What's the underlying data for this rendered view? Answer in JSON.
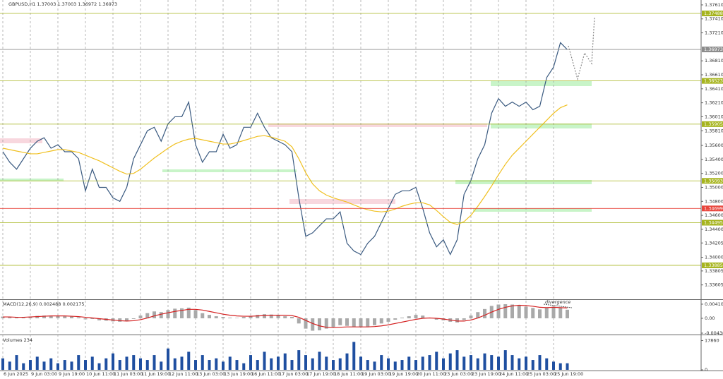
{
  "chart_data": [
    {
      "type": "line",
      "title": "GBPUSD,H1 1.37003 1.37003 1.36972 1.36973",
      "categories": [
        "6 Jun 2025",
        null,
        null,
        null,
        "9 Jun 03:00",
        null,
        null,
        null,
        "9 Jun 19:00",
        null,
        null,
        null,
        "10 Jun 11:00",
        null,
        null,
        null,
        "11 Jun 03:00",
        null,
        null,
        null,
        "11 Jun 19:00",
        null,
        null,
        null,
        "12 Jun 11:00",
        null,
        null,
        null,
        "13 Jun 03:00",
        null,
        null,
        null,
        "13 Jun 19:00",
        null,
        null,
        null,
        "16 Jun 11:00",
        null,
        null,
        null,
        "17 Jun 03:00",
        null,
        null,
        null,
        "17 Jun 19:00",
        null,
        null,
        null,
        "18 Jun 11:00",
        null,
        null,
        null,
        "19 Jun 03:00",
        null,
        null,
        null,
        "19 Jun 19:00",
        null,
        null,
        null,
        "20 Jun 11:00",
        null,
        null,
        null,
        "23 Jun 03:00",
        null,
        null,
        null,
        "23 Jun 19:00",
        null,
        null,
        null,
        "24 Jun 11:00",
        null,
        null,
        null,
        "25 Jun 03:00",
        null,
        null,
        null,
        "25 Jun 19:00",
        null,
        null
      ],
      "series": [
        {
          "color": "#3a5a80",
          "values": [
            1.3551,
            1.3536,
            1.3526,
            1.3541,
            1.3556,
            1.3566,
            1.3571,
            1.3556,
            1.3561,
            1.3551,
            1.3551,
            1.3541,
            1.3495,
            1.3526,
            1.35,
            1.35,
            1.3485,
            1.348,
            1.35,
            1.3541,
            1.3561,
            1.3581,
            1.3586,
            1.3566,
            1.3591,
            1.3601,
            1.3601,
            1.3622,
            1.3561,
            1.3536,
            1.3551,
            1.3551,
            1.3576,
            1.3556,
            1.3561,
            1.3586,
            1.3586,
            1.3606,
            1.3586,
            1.3571,
            1.3566,
            1.3561,
            1.3551,
            1.3485,
            1.343,
            1.3435,
            1.3445,
            1.3455,
            1.3455,
            1.3465,
            1.342,
            1.3409,
            1.3404,
            1.342,
            1.343,
            1.345,
            1.347,
            1.349,
            1.3495,
            1.3495,
            1.35,
            1.347,
            1.3435,
            1.3415,
            1.3425,
            1.3404,
            1.3425,
            1.349,
            1.351,
            1.3541,
            1.3561,
            1.3606,
            1.3627,
            1.3616,
            1.3622,
            1.3616,
            1.3622,
            1.3611,
            1.3616,
            1.3657,
            1.3672,
            1.3707,
            1.3697
          ]
        },
        {
          "color": "#f0c020",
          "values": [
            1.3556,
            1.3554,
            1.3552,
            1.355,
            1.3548,
            1.3548,
            1.355,
            1.3552,
            1.3554,
            1.3554,
            1.3552,
            1.355,
            1.3546,
            1.3542,
            1.3538,
            1.3533,
            1.3528,
            1.3523,
            1.3519,
            1.352,
            1.3526,
            1.3534,
            1.3542,
            1.3549,
            1.3556,
            1.3562,
            1.3566,
            1.3569,
            1.357,
            1.3568,
            1.3566,
            1.3564,
            1.3562,
            1.3562,
            1.3564,
            1.3567,
            1.357,
            1.3573,
            1.3574,
            1.3572,
            1.3569,
            1.3566,
            1.3558,
            1.3541,
            1.3521,
            1.3505,
            1.3495,
            1.3489,
            1.3485,
            1.3482,
            1.3479,
            1.3475,
            1.3471,
            1.3468,
            1.3466,
            1.3465,
            1.3466,
            1.3469,
            1.3473,
            1.3476,
            1.3478,
            1.3478,
            1.3475,
            1.3467,
            1.3458,
            1.345,
            1.3447,
            1.3451,
            1.346,
            1.3473,
            1.3487,
            1.3502,
            1.3518,
            1.3533,
            1.3546,
            1.3556,
            1.3566,
            1.3576,
            1.3586,
            1.3596,
            1.3606,
            1.3614,
            1.3618
          ]
        }
      ],
      "ylim": [
        1.334,
        1.3768
      ],
      "yticks": [
        {
          "value": 1.3761,
          "label": "1.37610"
        },
        {
          "value": 1.3741,
          "label": "1.37410"
        },
        {
          "value": 1.3721,
          "label": "1.37210"
        },
        {
          "value": 1.3681,
          "label": "1.36810"
        },
        {
          "value": 1.3661,
          "label": "1.36610"
        },
        {
          "value": 1.3641,
          "label": "1.36410"
        },
        {
          "value": 1.3621,
          "label": "1.36210"
        },
        {
          "value": 1.3601,
          "label": "1.36010"
        },
        {
          "value": 1.3581,
          "label": "1.35810"
        },
        {
          "value": 1.356,
          "label": "1.35600"
        },
        {
          "value": 1.354,
          "label": "1.35400"
        },
        {
          "value": 1.352,
          "label": "1.35200"
        },
        {
          "value": 1.35,
          "label": "1.35000"
        },
        {
          "value": 1.348,
          "label": "1.34800"
        },
        {
          "value": 1.346,
          "label": "1.34600"
        },
        {
          "value": 1.344,
          "label": "1.34400"
        },
        {
          "value": 1.34205,
          "label": "1.34205"
        },
        {
          "value": 1.34,
          "label": "1.34000"
        },
        {
          "value": 1.33805,
          "label": "1.33805"
        },
        {
          "value": 1.33605,
          "label": "1.33605"
        }
      ],
      "levels": [
        {
          "value": 1.37488,
          "color": "#a6b41e"
        },
        {
          "value": 1.36973,
          "color": "#8c8c8c"
        },
        {
          "value": 1.36523,
          "color": "#a6b41e"
        },
        {
          "value": 1.35905,
          "color": "#a6b41e"
        },
        {
          "value": 1.35093,
          "color": "#a6b41e"
        },
        {
          "value": 1.34699,
          "color": "#e8453c"
        },
        {
          "value": 1.34495,
          "color": "#a6b41e"
        },
        {
          "value": 1.33885,
          "color": "#a6b41e"
        }
      ]
    },
    {
      "type": "combo",
      "title": "MACD(12,26,9) 0.002488 0.002175",
      "annotation": "divergence",
      "series": [
        {
          "type": "bar",
          "color": "#a9a9a9",
          "values": [
            0.0005,
            0.0003,
            0.0002,
            0.0003,
            0.0005,
            0.0007,
            0.0008,
            0.0007,
            0.0007,
            0.0006,
            0.0005,
            0.0003,
            -0.0003,
            -0.0002,
            -0.0006,
            -0.0007,
            -0.0009,
            -0.001,
            -0.0008,
            -0.0002,
            0.0008,
            0.0015,
            0.002,
            0.0018,
            0.0024,
            0.0028,
            0.0029,
            0.0031,
            0.0024,
            0.0015,
            0.001,
            0.0006,
            0.0004,
            0.0002,
            0.0001,
            0.0004,
            0.0006,
            0.001,
            0.0012,
            0.0011,
            0.0009,
            0.0006,
            0.0004,
            -0.0015,
            -0.003,
            -0.0036,
            -0.0035,
            -0.003,
            -0.0025,
            -0.002,
            -0.0022,
            -0.0025,
            -0.0026,
            -0.0024,
            -0.002,
            -0.0015,
            -0.001,
            -0.0004,
            0.0002,
            0.0006,
            0.001,
            0.0008,
            0.0002,
            -0.0004,
            -0.0006,
            -0.001,
            -0.0012,
            -0.0005,
            0.0008,
            0.0018,
            0.0027,
            0.0036,
            0.004,
            0.0041,
            0.004,
            0.0038,
            0.0034,
            0.003,
            0.0026,
            0.003,
            0.0034,
            0.003,
            0.0025
          ]
        },
        {
          "type": "line",
          "color": "#d42020",
          "values": [
            0.0004,
            0.0004,
            0.0003,
            0.0003,
            0.0004,
            0.0005,
            0.0006,
            0.0007,
            0.0007,
            0.0007,
            0.0006,
            0.0005,
            0.0003,
            0.0001,
            -0.0001,
            -0.0003,
            -0.0005,
            -0.0007,
            -0.0008,
            -0.0007,
            -0.0004,
            0.0001,
            0.0007,
            0.0012,
            0.0016,
            0.002,
            0.0023,
            0.0026,
            0.0026,
            0.0024,
            0.002,
            0.0016,
            0.0012,
            0.0009,
            0.0007,
            0.0006,
            0.0006,
            0.0007,
            0.0008,
            0.0009,
            0.0009,
            0.0009,
            0.0008,
            0.0003,
            -0.0006,
            -0.0015,
            -0.0022,
            -0.0026,
            -0.0027,
            -0.0026,
            -0.0025,
            -0.0025,
            -0.0025,
            -0.0025,
            -0.0024,
            -0.0022,
            -0.0019,
            -0.0015,
            -0.0011,
            -0.0007,
            -0.0003,
            0,
            0.0001,
            0,
            -0.0002,
            -0.0005,
            -0.0008,
            -0.0008,
            -0.0005,
            0.0001,
            0.0009,
            0.0018,
            0.0026,
            0.0032,
            0.0036,
            0.0038,
            0.0037,
            0.0035,
            0.0032,
            0.0031,
            0.0032,
            0.0031,
            0.003
          ]
        }
      ],
      "ylim": [
        -0.004305,
        0.00513
      ],
      "yticks": [
        0.004109,
        {
          "value": 0,
          "label": "0.00"
        },
        -0.004305
      ]
    },
    {
      "type": "bar",
      "title": "Volumes 234",
      "color": "#1f4fa0",
      "values": [
        7000,
        5000,
        9000,
        4000,
        6000,
        8000,
        5000,
        7000,
        4000,
        6000,
        5000,
        9000,
        6000,
        8000,
        4000,
        7000,
        10000,
        6000,
        8000,
        9000,
        7000,
        6000,
        9000,
        5000,
        13000,
        7000,
        8000,
        11000,
        6000,
        9000,
        6000,
        7000,
        5000,
        8000,
        6000,
        4000,
        9000,
        6000,
        11000,
        7000,
        8000,
        10000,
        6000,
        12000,
        9000,
        7000,
        11000,
        8000,
        6000,
        7000,
        10000,
        17000,
        8000,
        6000,
        5000,
        9000,
        7000,
        5000,
        6000,
        8000,
        6000,
        8000,
        9000,
        11000,
        7000,
        10000,
        12000,
        8000,
        9000,
        7000,
        10000,
        9000,
        8000,
        12000,
        9000,
        7000,
        8000,
        6000,
        9000,
        7000,
        5000,
        4000,
        4000
      ],
      "ylim": [
        0,
        20210
      ],
      "yticks": [
        17860,
        0
      ]
    }
  ]
}
